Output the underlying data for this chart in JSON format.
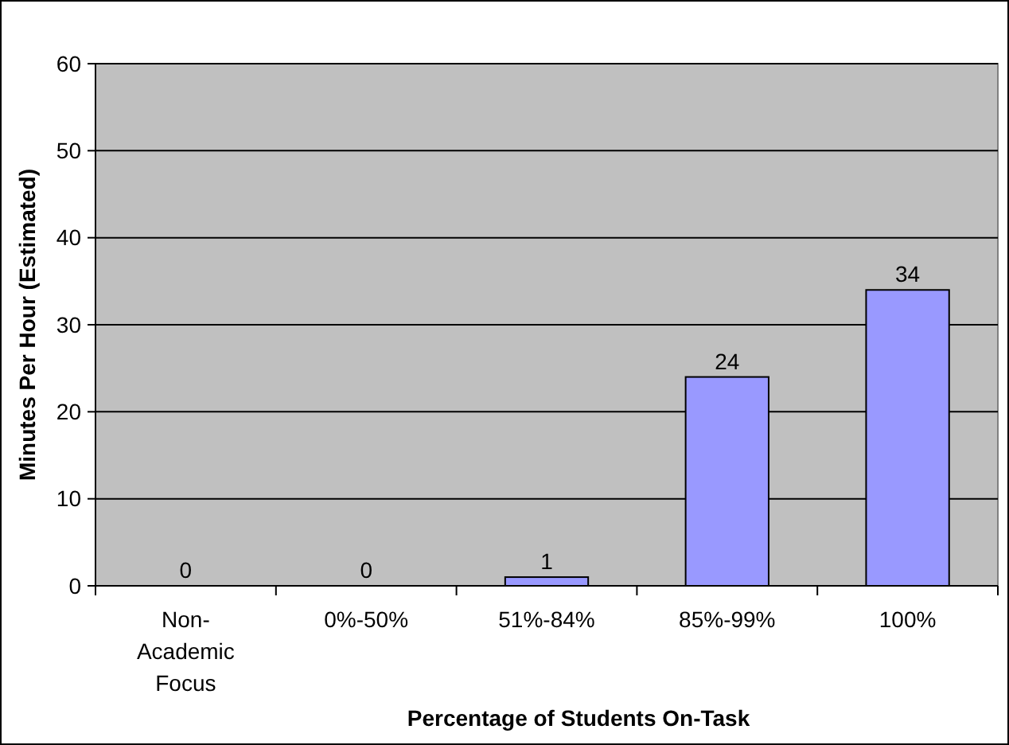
{
  "chart_data": {
    "type": "bar",
    "xlabel": "Percentage of Students On-Task",
    "ylabel": "Minutes Per Hour (Estimated)",
    "categories": [
      "Non-Academic Focus",
      "0%-50%",
      "51%-84%",
      "85%-99%",
      "100%"
    ],
    "values": [
      0,
      0,
      1,
      24,
      34
    ],
    "color": "#9999ff",
    "ylim": [
      0,
      60
    ],
    "yticks": [
      0,
      10,
      20,
      30,
      40,
      50,
      60
    ],
    "grid": "y",
    "data_labels": true
  }
}
